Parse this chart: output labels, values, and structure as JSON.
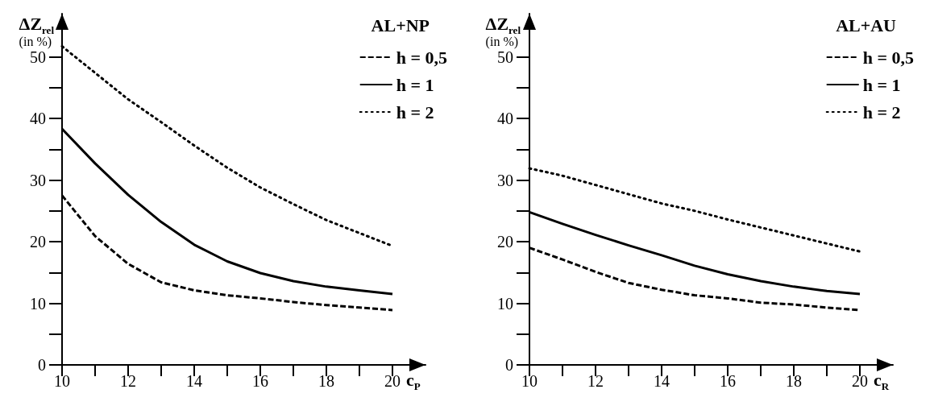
{
  "chart_data": [
    {
      "type": "line",
      "xlabel": "c$_{P}$",
      "ylabel": "ΔZ$_{rel}$\n(in %)",
      "legend_title": "AL+NP",
      "legend": "top right",
      "grid": false,
      "marker": "none",
      "x": [
        10,
        11,
        12,
        13,
        14,
        15,
        16,
        17,
        18,
        19,
        20
      ],
      "xlim": [
        10,
        21
      ],
      "xticks": [
        10,
        {
          "value": 11,
          "label": null
        },
        12,
        {
          "value": 13,
          "label": null
        },
        14,
        {
          "value": 15,
          "label": null
        },
        16,
        {
          "value": 17,
          "label": null
        },
        18,
        {
          "value": 19,
          "label": null
        },
        20
      ],
      "ylim": [
        0,
        57
      ],
      "yticks": [
        0,
        {
          "value": 5,
          "label": null
        },
        10,
        {
          "value": 15,
          "label": null
        },
        20,
        {
          "value": 25,
          "label": null
        },
        30,
        {
          "value": 35,
          "label": null
        },
        40,
        {
          "value": 45,
          "label": null
        },
        50
      ],
      "series": [
        {
          "name": "h = 0,5",
          "color": "#000000",
          "line_style": "dashed",
          "values": [
            27.5,
            20.9,
            16.4,
            13.4,
            12.1,
            11.3,
            10.8,
            10.2,
            9.7,
            9.3,
            8.9
          ]
        },
        {
          "name": "h = 1",
          "color": "#000000",
          "line_style": "solid",
          "values": [
            38.3,
            32.7,
            27.6,
            23.2,
            19.5,
            16.8,
            14.9,
            13.6,
            12.7,
            12.1,
            11.5
          ]
        },
        {
          "name": "h = 2",
          "color": "#000000",
          "line_style": "dotted",
          "values": [
            51.7,
            47.4,
            43.1,
            39.4,
            35.6,
            32.0,
            28.8,
            26.1,
            23.5,
            21.4,
            19.3
          ]
        }
      ]
    },
    {
      "type": "line",
      "xlabel": "c$_{R}$",
      "ylabel": "ΔZ$_{rel}$\n(in %)",
      "legend_title": "AL+AU",
      "legend": "top right",
      "grid": false,
      "marker": "none",
      "x": [
        10,
        11,
        12,
        13,
        14,
        15,
        16,
        17,
        18,
        19,
        20
      ],
      "xlim": [
        10,
        21
      ],
      "xticks": [
        10,
        {
          "value": 11,
          "label": null
        },
        12,
        {
          "value": 13,
          "label": null
        },
        14,
        {
          "value": 15,
          "label": null
        },
        16,
        {
          "value": 17,
          "label": null
        },
        18,
        {
          "value": 19,
          "label": null
        },
        20
      ],
      "ylim": [
        0,
        57
      ],
      "yticks": [
        0,
        {
          "value": 5,
          "label": null
        },
        10,
        {
          "value": 15,
          "label": null
        },
        20,
        {
          "value": 25,
          "label": null
        },
        30,
        {
          "value": 35,
          "label": null
        },
        40,
        {
          "value": 45,
          "label": null
        },
        50
      ],
      "series": [
        {
          "name": "h = 0,5",
          "color": "#000000",
          "line_style": "dashed",
          "values": [
            19.0,
            17.1,
            15.1,
            13.3,
            12.2,
            11.3,
            10.8,
            10.1,
            9.8,
            9.3,
            8.9
          ]
        },
        {
          "name": "h = 1",
          "color": "#000000",
          "line_style": "solid",
          "values": [
            24.8,
            22.9,
            21.1,
            19.4,
            17.8,
            16.1,
            14.7,
            13.6,
            12.7,
            12.0,
            11.5
          ]
        },
        {
          "name": "h = 2",
          "color": "#000000",
          "line_style": "dotted",
          "values": [
            31.9,
            30.7,
            29.2,
            27.7,
            26.2,
            25.0,
            23.6,
            22.3,
            21.0,
            19.7,
            18.4
          ]
        }
      ]
    }
  ]
}
